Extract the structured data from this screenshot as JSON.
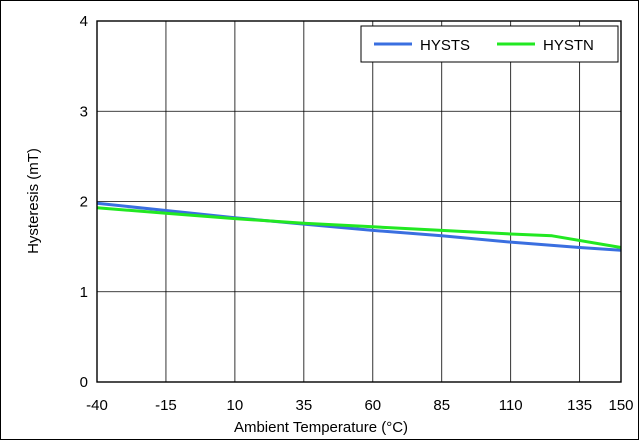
{
  "chart_data": {
    "type": "line",
    "title": "",
    "xlabel": "Ambient Temperature (°C)",
    "ylabel": "Hysteresis (mT)",
    "xlim": [
      -40,
      150
    ],
    "ylim": [
      0,
      4
    ],
    "x_ticks": [
      -40,
      -15,
      10,
      35,
      60,
      85,
      110,
      135,
      150
    ],
    "x_tick_labels": [
      "-40",
      "-15",
      "10",
      "35",
      "60",
      "85",
      "110",
      "135",
      "150"
    ],
    "y_ticks": [
      0,
      1,
      2,
      3,
      4
    ],
    "y_tick_labels": [
      "0",
      "1",
      "2",
      "3",
      "4"
    ],
    "grid": true,
    "legend_position": "top-right",
    "series": [
      {
        "name": "HYSTS",
        "color": "#3a6fe0",
        "x": [
          -40,
          -15,
          10,
          35,
          60,
          85,
          110,
          135,
          150
        ],
        "y": [
          1.98,
          1.9,
          1.82,
          1.75,
          1.68,
          1.62,
          1.55,
          1.49,
          1.46
        ]
      },
      {
        "name": "HYSTN",
        "color": "#22e822",
        "x": [
          -40,
          -15,
          10,
          35,
          60,
          85,
          110,
          125,
          150
        ],
        "y": [
          1.93,
          1.87,
          1.81,
          1.76,
          1.72,
          1.68,
          1.64,
          1.62,
          1.49
        ]
      }
    ]
  }
}
